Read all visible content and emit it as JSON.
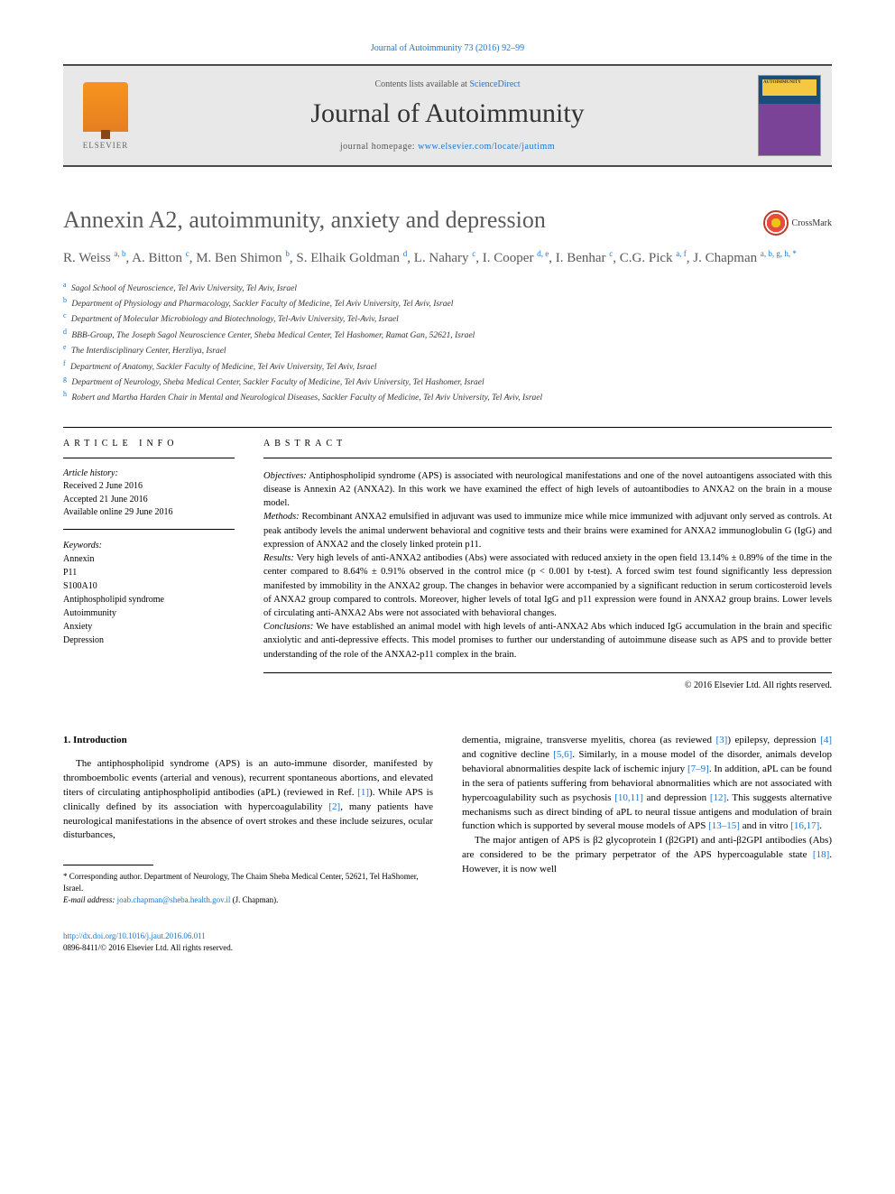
{
  "header_citation": "Journal of Autoimmunity 73 (2016) 92–99",
  "banner": {
    "contents_prefix": "Contents lists available at ",
    "contents_link": "ScienceDirect",
    "journal_name": "Journal of Autoimmunity",
    "homepage_prefix": "journal homepage: ",
    "homepage_url": "www.elsevier.com/locate/jautimm",
    "elsevier_label": "ELSEVIER",
    "cover_label": "AUTOIMMUNITY"
  },
  "crossmark_label": "CrossMark",
  "title": "Annexin A2, autoimmunity, anxiety and depression",
  "authors_html": "R. Weiss <sup>a, b</sup>, A. Bitton <sup>c</sup>, M. Ben Shimon <sup>b</sup>, S. Elhaik Goldman <sup>d</sup>, L. Nahary <sup>c</sup>, I. Cooper <sup>d, e</sup>, I. Benhar <sup>c</sup>, C.G. Pick <sup>a, f</sup>, J. Chapman <sup>a, b, g, h, *</sup>",
  "affiliations": [
    {
      "sup": "a",
      "text": "Sagol School of Neuroscience, Tel Aviv University, Tel Aviv, Israel"
    },
    {
      "sup": "b",
      "text": "Department of Physiology and Pharmacology, Sackler Faculty of Medicine, Tel Aviv University, Tel Aviv, Israel"
    },
    {
      "sup": "c",
      "text": "Department of Molecular Microbiology and Biotechnology, Tel-Aviv University, Tel-Aviv, Israel"
    },
    {
      "sup": "d",
      "text": "BBB-Group, The Joseph Sagol Neuroscience Center, Sheba Medical Center, Tel Hashomer, Ramat Gan, 52621, Israel"
    },
    {
      "sup": "e",
      "text": "The Interdisciplinary Center, Herzliya, Israel"
    },
    {
      "sup": "f",
      "text": "Department of Anatomy, Sackler Faculty of Medicine, Tel Aviv University, Tel Aviv, Israel"
    },
    {
      "sup": "g",
      "text": "Department of Neurology, Sheba Medical Center, Sackler Faculty of Medicine, Tel Aviv University, Tel Hashomer, Israel"
    },
    {
      "sup": "h",
      "text": "Robert and Martha Harden Chair in Mental and Neurological Diseases, Sackler Faculty of Medicine, Tel Aviv University, Tel Aviv, Israel"
    }
  ],
  "info_header": "ARTICLE INFO",
  "abstract_header": "ABSTRACT",
  "history": {
    "label": "Article history:",
    "received": "Received 2 June 2016",
    "accepted": "Accepted 21 June 2016",
    "online": "Available online 29 June 2016"
  },
  "keywords": {
    "label": "Keywords:",
    "items": [
      "Annexin",
      "P11",
      "S100A10",
      "Antiphospholipid syndrome",
      "Autoimmunity",
      "Anxiety",
      "Depression"
    ]
  },
  "abstract": {
    "objectives_label": "Objectives:",
    "objectives": " Antiphospholipid syndrome (APS) is associated with neurological manifestations and one of the novel autoantigens associated with this disease is Annexin A2 (ANXA2). In this work we have examined the effect of high levels of autoantibodies to ANXA2 on the brain in a mouse model.",
    "methods_label": "Methods:",
    "methods": " Recombinant ANXA2 emulsified in adjuvant was used to immunize mice while mice immunized with adjuvant only served as controls. At peak antibody levels the animal underwent behavioral and cognitive tests and their brains were examined for ANXA2 immunoglobulin G (IgG) and expression of ANXA2 and the closely linked protein p11.",
    "results_label": "Results:",
    "results": " Very high levels of anti-ANXA2 antibodies (Abs) were associated with reduced anxiety in the open field 13.14% ± 0.89% of the time in the center compared to 8.64% ± 0.91% observed in the control mice (p < 0.001 by t-test). A forced swim test found significantly less depression manifested by immobility in the ANXA2 group. The changes in behavior were accompanied by a significant reduction in serum corticosteroid levels of ANXA2 group compared to controls. Moreover, higher levels of total IgG and p11 expression were found in ANXA2 group brains. Lower levels of circulating anti-ANXA2 Abs were not associated with behavioral changes.",
    "conclusions_label": "Conclusions:",
    "conclusions": " We have established an animal model with high levels of anti-ANXA2 Abs which induced IgG accumulation in the brain and specific anxiolytic and anti-depressive effects. This model promises to further our understanding of autoimmune disease such as APS and to provide better understanding of the role of the ANXA2-p11 complex in the brain."
  },
  "copyright": "© 2016 Elsevier Ltd. All rights reserved.",
  "section1_heading": "1. Introduction",
  "col1_p1_a": "The antiphospholipid syndrome (APS) is an auto-immune disorder, manifested by thromboembolic events (arterial and venous), recurrent spontaneous abortions, and elevated titers of circulating antiphospholipid antibodies (aPL) (reviewed in Ref. ",
  "ref1": "[1]",
  "col1_p1_b": "). While APS is clinically defined by its association with hypercoagulability ",
  "ref2": "[2]",
  "col1_p1_c": ", many patients have neurological manifestations in the absence of overt strokes and these include seizures, ocular disturbances,",
  "col2_p1_a": "dementia, migraine, transverse myelitis, chorea (as reviewed ",
  "ref3": "[3]",
  "col2_p1_b": ") epilepsy, depression ",
  "ref4": "[4]",
  "col2_p1_c": " and cognitive decline ",
  "ref56": "[5,6]",
  "col2_p1_d": ". Similarly, in a mouse model of the disorder, animals develop behavioral abnormalities despite lack of ischemic injury ",
  "ref79": "[7–9]",
  "col2_p1_e": ". In addition, aPL can be found in the sera of patients suffering from behavioral abnormalities which are not associated with hypercoagulability such as psychosis ",
  "ref1011": "[10,11]",
  "col2_p1_f": " and depression ",
  "ref12": "[12]",
  "col2_p1_g": ". This suggests alternative mechanisms such as direct binding of aPL to neural tissue antigens and modulation of brain function which is supported by several mouse models of APS ",
  "ref1315": "[13–15]",
  "col2_p1_h": " and in vitro ",
  "ref1617": "[16,17]",
  "col2_p1_i": ".",
  "col2_p2_a": "The major antigen of APS is β2 glycoprotein I (β2GPI) and anti-β2GPI antibodies (Abs) are considered to be the primary perpetrator of the APS hypercoagulable state ",
  "ref18": "[18]",
  "col2_p2_b": ". However, it is now well",
  "footnote": {
    "corr": "* Corresponding author. Department of Neurology, The Chaim Sheba Medical Center, 52621, Tel HaShomer, Israel.",
    "email_label": "E-mail address:",
    "email": "joab.chapman@sheba.health.gov.il",
    "email_suffix": " (J. Chapman)."
  },
  "footer": {
    "doi": "http://dx.doi.org/10.1016/j.jaut.2016.06.011",
    "issn": "0896-8411/© 2016 Elsevier Ltd. All rights reserved."
  }
}
